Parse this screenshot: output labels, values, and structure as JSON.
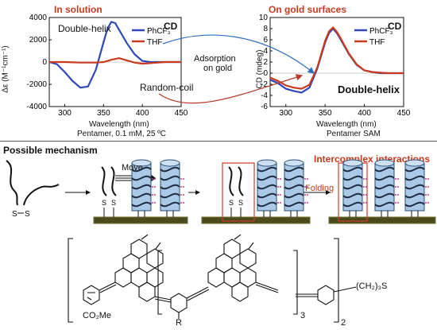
{
  "left_chart": {
    "title": "In solution",
    "ylabel": "Δε (M⁻¹cm⁻¹)",
    "xlabel": "Wavelength (nm)",
    "caption": "Pentamer, 0.1 mM, 25 ºC",
    "cd_label": "CD",
    "annot_top": "Double-helix",
    "annot_bottom": "Random-coil"
  },
  "right_chart": {
    "title": "On gold surfaces",
    "ylabel": "CD (mdeg)",
    "xlabel": "Wavelength (nm)",
    "caption": "Pentamer SAM",
    "cd_label": "CD",
    "annot": "Double-helix"
  },
  "adsorption_label": "Adsorption",
  "adsorption_label2": "on gold",
  "mechanism": {
    "title": "Possible mechanism",
    "move_label": "Move",
    "folding_label": "Folding",
    "intercomplex_label": "Intercomplex interactions"
  },
  "molecule": {
    "co2me": "CO₂Me",
    "r": "R",
    "chain": "(CH₂)₃S",
    "sub3": "3",
    "sub2": "2"
  },
  "chart_data": [
    {
      "type": "line",
      "title": "In solution",
      "xlabel": "Wavelength (nm)",
      "ylabel": "Δε (M⁻¹cm⁻¹)",
      "xlim": [
        280,
        450
      ],
      "ylim": [
        -4000,
        4000
      ],
      "xticks": [
        300,
        350,
        400,
        450
      ],
      "yticks": [
        -4000,
        -2000,
        0,
        2000,
        4000
      ],
      "legend_position": "top-right",
      "series": [
        {
          "name": "PhCF₃",
          "color": "#2f47b8",
          "x": [
            280,
            290,
            300,
            310,
            320,
            330,
            340,
            350,
            355,
            360,
            365,
            370,
            380,
            390,
            400,
            410,
            420,
            430,
            440,
            450
          ],
          "y": [
            0,
            -200,
            -900,
            -1700,
            -2300,
            -2200,
            -700,
            1800,
            3000,
            3600,
            3500,
            2900,
            1700,
            700,
            100,
            0,
            0,
            0,
            0,
            0
          ]
        },
        {
          "name": "THF",
          "color": "#c83a1e",
          "x": [
            280,
            300,
            320,
            340,
            350,
            360,
            370,
            380,
            390,
            400,
            410,
            420,
            430,
            440,
            450
          ],
          "y": [
            0,
            0,
            -50,
            -50,
            0,
            200,
            350,
            150,
            -50,
            -150,
            -100,
            -50,
            0,
            0,
            0
          ]
        }
      ]
    },
    {
      "type": "line",
      "title": "On gold surfaces",
      "xlabel": "Wavelength (nm)",
      "ylabel": "CD (mdeg)",
      "xlim": [
        280,
        450
      ],
      "ylim": [
        -6,
        10
      ],
      "xticks": [
        300,
        350,
        400,
        450
      ],
      "yticks": [
        -6,
        -4,
        -2,
        0,
        2,
        4,
        6,
        8,
        10
      ],
      "legend_position": "top-right",
      "series": [
        {
          "name": "PhCF₃",
          "color": "#2f47b8",
          "x": [
            280,
            290,
            300,
            310,
            320,
            330,
            340,
            350,
            355,
            360,
            365,
            370,
            380,
            390,
            400,
            410,
            420,
            430,
            440,
            450
          ],
          "y": [
            -1.2,
            -1.8,
            -2.8,
            -3.2,
            -3.5,
            -2.6,
            0.8,
            5.5,
            7.2,
            8.0,
            7.2,
            6.0,
            3.5,
            1.5,
            0.5,
            0.2,
            0,
            0,
            0,
            0
          ]
        },
        {
          "name": "THF",
          "color": "#c83a1e",
          "x": [
            280,
            290,
            300,
            310,
            320,
            330,
            340,
            350,
            355,
            360,
            365,
            370,
            380,
            390,
            400,
            410,
            420,
            430,
            440,
            450
          ],
          "y": [
            -0.8,
            -1.4,
            -2.2,
            -2.6,
            -2.8,
            -2.1,
            1.0,
            5.8,
            7.5,
            8.2,
            7.4,
            6.2,
            3.6,
            1.6,
            0.5,
            0.2,
            0.1,
            0,
            0,
            0
          ]
        }
      ]
    }
  ]
}
